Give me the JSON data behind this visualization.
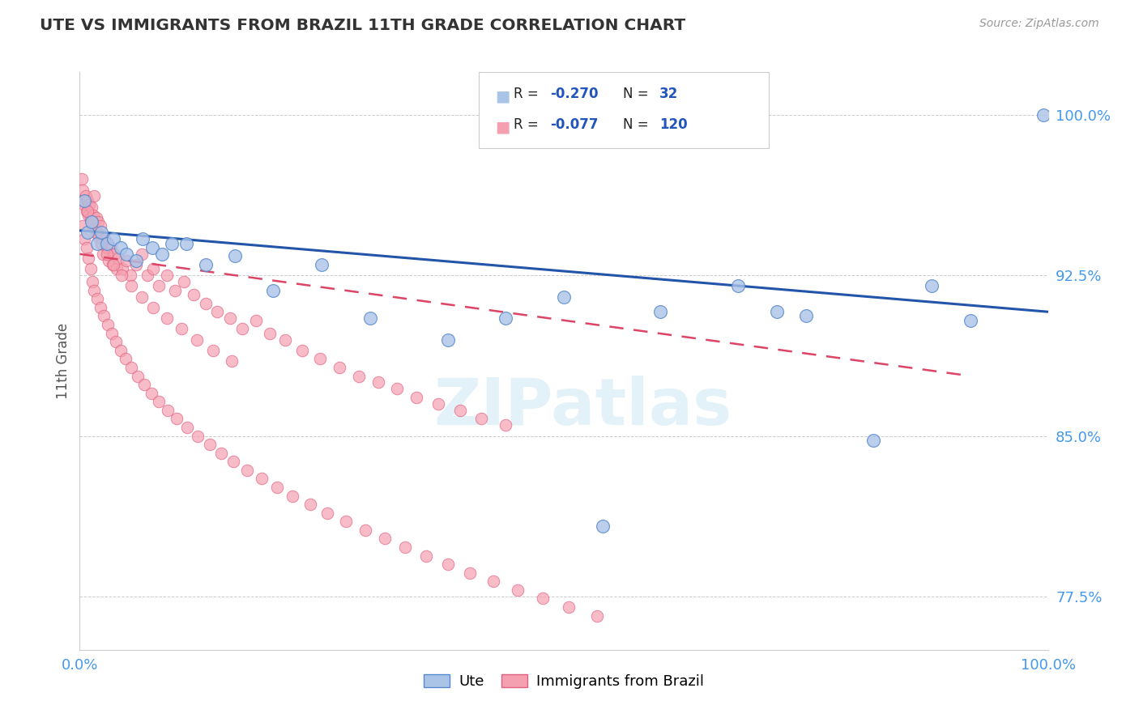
{
  "title": "UTE VS IMMIGRANTS FROM BRAZIL 11TH GRADE CORRELATION CHART",
  "source_text": "Source: ZipAtlas.com",
  "ylabel": "11th Grade",
  "watermark": "ZIPatlas",
  "legend_label_blue": "Ute",
  "legend_label_pink": "Immigrants from Brazil",
  "blue_fill": "#aac4e8",
  "blue_edge": "#5588cc",
  "pink_fill": "#f5a0b0",
  "pink_edge": "#e06080",
  "trend_blue_color": "#2255aa",
  "trend_pink_color": "#dd4466",
  "xlim": [
    0.0,
    1.0
  ],
  "ylim": [
    0.75,
    1.02
  ],
  "yticks": [
    0.775,
    0.85,
    0.925,
    1.0
  ],
  "ytick_labels": [
    "77.5%",
    "85.0%",
    "92.5%",
    "100.0%"
  ],
  "xticks": [
    0.0,
    1.0
  ],
  "xtick_labels": [
    "0.0%",
    "100.0%"
  ],
  "tick_color": "#4499ee",
  "grid_color": "#cccccc",
  "blue_trend_x": [
    0.0,
    1.0
  ],
  "blue_trend_y": [
    0.946,
    0.908
  ],
  "pink_trend_x": [
    0.0,
    0.92
  ],
  "pink_trend_y": [
    0.935,
    0.878
  ],
  "blue_x": [
    0.005,
    0.008,
    0.012,
    0.018,
    0.022,
    0.028,
    0.035,
    0.042,
    0.048,
    0.058,
    0.065,
    0.075,
    0.085,
    0.095,
    0.11,
    0.13,
    0.16,
    0.2,
    0.25,
    0.3,
    0.38,
    0.44,
    0.5,
    0.6,
    0.68,
    0.75,
    0.82,
    0.88,
    0.92,
    0.995,
    0.54,
    0.72
  ],
  "blue_y": [
    0.96,
    0.945,
    0.95,
    0.94,
    0.945,
    0.94,
    0.942,
    0.938,
    0.935,
    0.932,
    0.942,
    0.938,
    0.935,
    0.94,
    0.94,
    0.93,
    0.934,
    0.918,
    0.93,
    0.905,
    0.895,
    0.905,
    0.915,
    0.908,
    0.92,
    0.906,
    0.848,
    0.92,
    0.904,
    1.0,
    0.808,
    0.908
  ],
  "pink_x": [
    0.002,
    0.003,
    0.004,
    0.005,
    0.006,
    0.007,
    0.008,
    0.009,
    0.01,
    0.011,
    0.012,
    0.013,
    0.014,
    0.015,
    0.016,
    0.017,
    0.018,
    0.019,
    0.02,
    0.021,
    0.022,
    0.024,
    0.026,
    0.028,
    0.03,
    0.032,
    0.034,
    0.036,
    0.038,
    0.04,
    0.044,
    0.048,
    0.052,
    0.058,
    0.064,
    0.07,
    0.076,
    0.082,
    0.09,
    0.098,
    0.108,
    0.118,
    0.13,
    0.142,
    0.155,
    0.168,
    0.182,
    0.196,
    0.212,
    0.23,
    0.248,
    0.268,
    0.288,
    0.308,
    0.328,
    0.348,
    0.37,
    0.393,
    0.415,
    0.44,
    0.003,
    0.005,
    0.007,
    0.009,
    0.011,
    0.013,
    0.015,
    0.018,
    0.021,
    0.025,
    0.029,
    0.033,
    0.037,
    0.042,
    0.047,
    0.053,
    0.06,
    0.067,
    0.074,
    0.082,
    0.091,
    0.1,
    0.111,
    0.122,
    0.134,
    0.146,
    0.159,
    0.173,
    0.188,
    0.204,
    0.22,
    0.238,
    0.256,
    0.275,
    0.295,
    0.315,
    0.336,
    0.358,
    0.38,
    0.403,
    0.427,
    0.452,
    0.478,
    0.505,
    0.534,
    0.008,
    0.012,
    0.016,
    0.022,
    0.028,
    0.035,
    0.043,
    0.053,
    0.064,
    0.076,
    0.09,
    0.105,
    0.121,
    0.138,
    0.157
  ],
  "pink_y": [
    0.97,
    0.965,
    0.96,
    0.958,
    0.962,
    0.955,
    0.96,
    0.953,
    0.958,
    0.952,
    0.957,
    0.948,
    0.953,
    0.962,
    0.947,
    0.952,
    0.945,
    0.95,
    0.943,
    0.948,
    0.94,
    0.935,
    0.942,
    0.938,
    0.932,
    0.938,
    0.93,
    0.935,
    0.928,
    0.933,
    0.928,
    0.932,
    0.925,
    0.93,
    0.935,
    0.925,
    0.928,
    0.92,
    0.925,
    0.918,
    0.922,
    0.916,
    0.912,
    0.908,
    0.905,
    0.9,
    0.904,
    0.898,
    0.895,
    0.89,
    0.886,
    0.882,
    0.878,
    0.875,
    0.872,
    0.868,
    0.865,
    0.862,
    0.858,
    0.855,
    0.948,
    0.942,
    0.938,
    0.933,
    0.928,
    0.922,
    0.918,
    0.914,
    0.91,
    0.906,
    0.902,
    0.898,
    0.894,
    0.89,
    0.886,
    0.882,
    0.878,
    0.874,
    0.87,
    0.866,
    0.862,
    0.858,
    0.854,
    0.85,
    0.846,
    0.842,
    0.838,
    0.834,
    0.83,
    0.826,
    0.822,
    0.818,
    0.814,
    0.81,
    0.806,
    0.802,
    0.798,
    0.794,
    0.79,
    0.786,
    0.782,
    0.778,
    0.774,
    0.77,
    0.766,
    0.955,
    0.95,
    0.945,
    0.94,
    0.935,
    0.93,
    0.925,
    0.92,
    0.915,
    0.91,
    0.905,
    0.9,
    0.895,
    0.89,
    0.885
  ]
}
